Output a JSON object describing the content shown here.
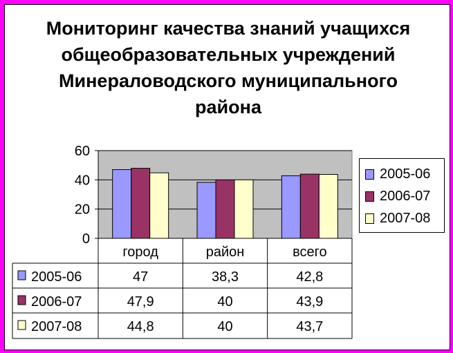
{
  "chart_data": {
    "type": "bar",
    "title": "Мониторинг качества знаний учащихся общеобразовательных учреждений Минераловодского муниципального района",
    "categories": [
      "город",
      "район",
      "всего"
    ],
    "series": [
      {
        "name": "2005-06",
        "values": [
          47,
          38.3,
          42.8
        ],
        "value_labels": [
          "47",
          "38,3",
          "42,8"
        ],
        "color": "#9999ff"
      },
      {
        "name": "2006-07",
        "values": [
          47.9,
          40,
          43.9
        ],
        "value_labels": [
          "47,9",
          "40",
          "43,9"
        ],
        "color": "#993366"
      },
      {
        "name": "2007-08",
        "values": [
          44.8,
          40,
          43.7
        ],
        "value_labels": [
          "44,8",
          "40",
          "43,7"
        ],
        "color": "#ffffcc"
      }
    ],
    "ylim": [
      0,
      60
    ],
    "y_ticks": [
      0,
      20,
      40,
      60
    ],
    "y_tick_labels": [
      "0",
      "20",
      "40",
      "60"
    ],
    "grid": true,
    "plot_background": "#c0c0c0",
    "legend": "right",
    "data_table": true
  }
}
